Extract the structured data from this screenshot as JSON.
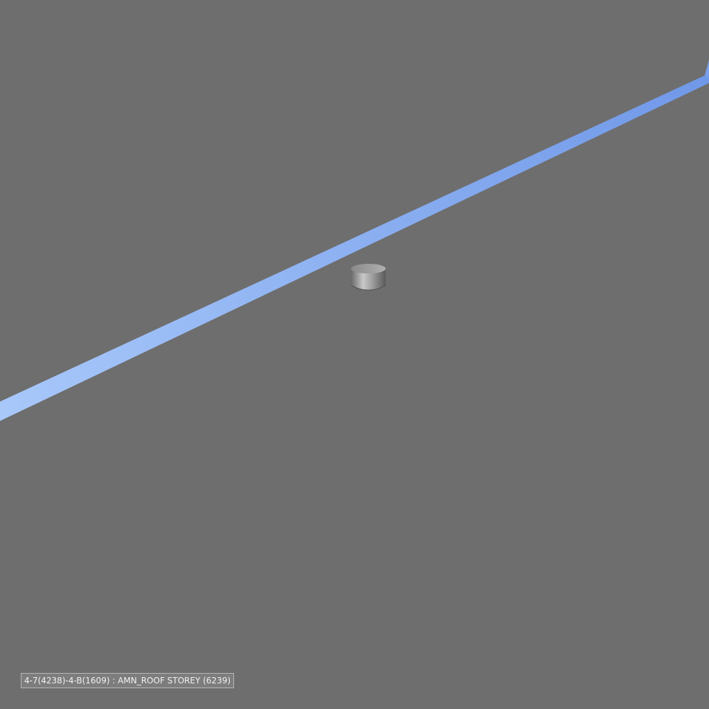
{
  "viewport": {
    "background_color": "#6e6e6e"
  },
  "scene": {
    "beam_color_start": "#a8c8fa",
    "beam_color_end": "#7098e8",
    "object_icon": "cylinder-object"
  },
  "status": {
    "label": "4-7(4238)-4-B(1609) : AMN_ROOF STOREY (6239)"
  }
}
